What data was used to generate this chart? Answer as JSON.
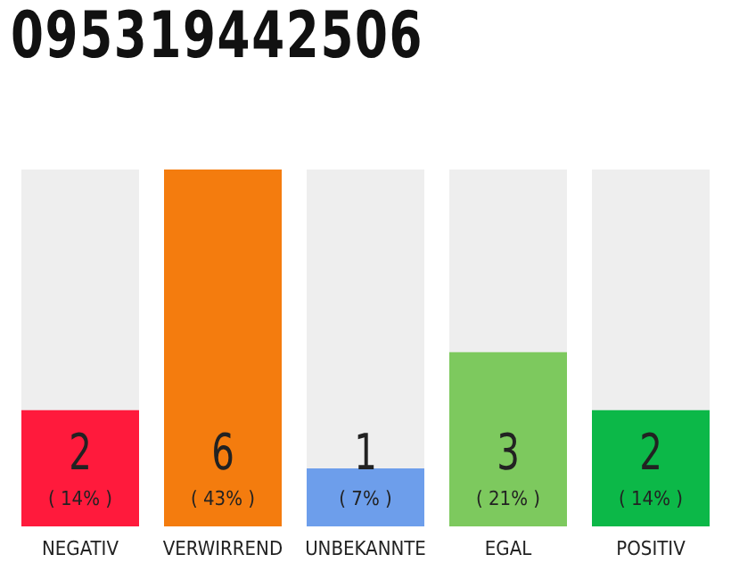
{
  "chart_data": {
    "type": "bar",
    "title": "095319442506",
    "categories": [
      "NEGATIV",
      "VERWIRREND",
      "UNBEKANNTE",
      "EGAL",
      "POSITIV"
    ],
    "values": [
      14,
      43,
      7,
      21,
      14
    ],
    "colors": [
      "#ff1a3c",
      "#f47c0e",
      "#6d9eeb",
      "#7dc95e",
      "#0cb848"
    ],
    "value_labels": [
      "( 14% )",
      "( 43% )",
      "( 7% )",
      "( 21% )",
      "( 14% )"
    ],
    "annotations": [
      "2",
      "6",
      "1",
      "3",
      "2"
    ],
    "tick_labels": "x"
  }
}
